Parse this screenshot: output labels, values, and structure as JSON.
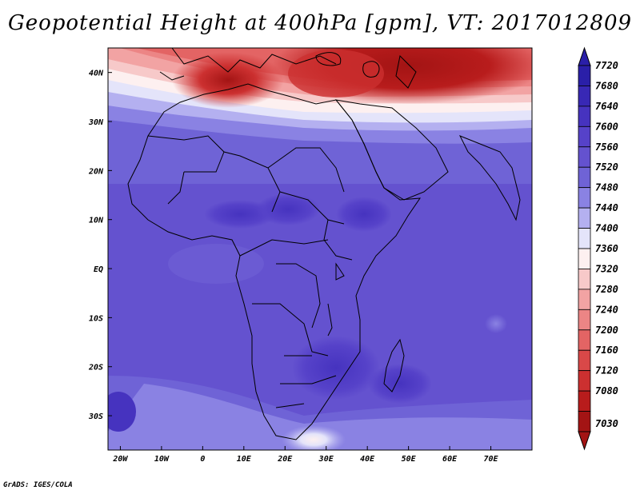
{
  "title": "Geopotential Height at 400hPa [gpm], VT: 2017012809",
  "credit": "GrADS: IGES/COLA",
  "map": {
    "lon_range": [
      -23,
      80
    ],
    "lat_range": [
      -37,
      45
    ],
    "lon_ticks": [
      {
        "value": -20,
        "label": "20W"
      },
      {
        "value": -10,
        "label": "10W"
      },
      {
        "value": 0,
        "label": "0"
      },
      {
        "value": 10,
        "label": "10E"
      },
      {
        "value": 20,
        "label": "20E"
      },
      {
        "value": 30,
        "label": "30E"
      },
      {
        "value": 40,
        "label": "40E"
      },
      {
        "value": 50,
        "label": "50E"
      },
      {
        "value": 60,
        "label": "60E"
      },
      {
        "value": 70,
        "label": "70E"
      }
    ],
    "lat_ticks": [
      {
        "value": 40,
        "label": "40N"
      },
      {
        "value": 30,
        "label": "30N"
      },
      {
        "value": 20,
        "label": "20N"
      },
      {
        "value": 10,
        "label": "10N"
      },
      {
        "value": 0,
        "label": "EQ"
      },
      {
        "value": -10,
        "label": "10S"
      },
      {
        "value": -20,
        "label": "20S"
      },
      {
        "value": -30,
        "label": "30S"
      }
    ]
  },
  "colorbar": {
    "levels": [
      "7720",
      "7680",
      "7640",
      "7600",
      "7560",
      "7520",
      "7480",
      "7440",
      "7400",
      "7360",
      "7320",
      "7280",
      "7240",
      "7200",
      "7160",
      "7120",
      "7080",
      "7030"
    ],
    "colors": [
      "#2a1fa8",
      "#3828b5",
      "#4633bf",
      "#5642c9",
      "#6452cf",
      "#6f63d6",
      "#8a82e3",
      "#b4b0f0",
      "#e4e4fa",
      "#fdf0f0",
      "#f7c9c9",
      "#f2a3a3",
      "#ec8585",
      "#e36464",
      "#d94848",
      "#cc3030",
      "#b81c1c",
      "#a31414"
    ]
  }
}
